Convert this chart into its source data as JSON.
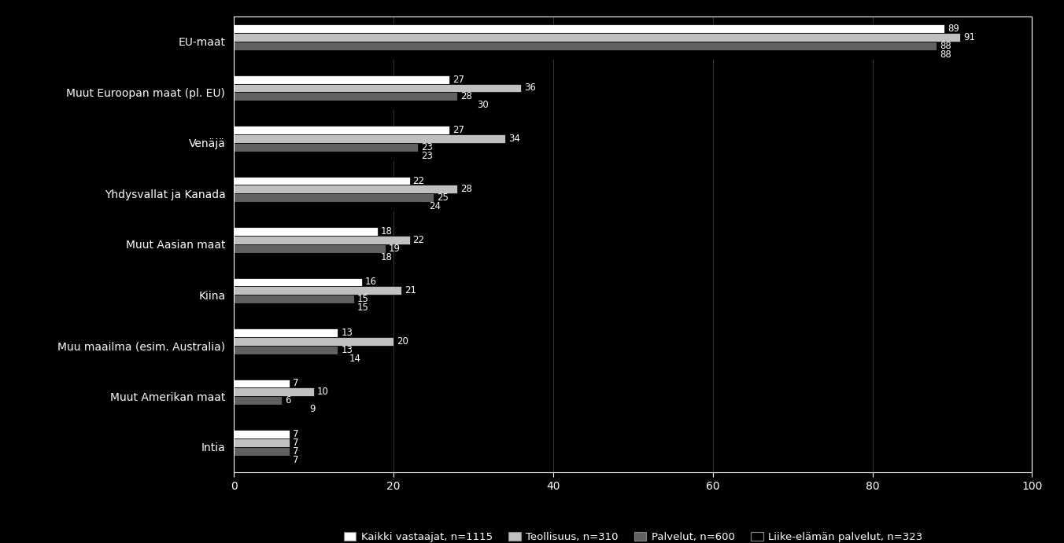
{
  "categories": [
    "EU-maat",
    "Muut Euroopan maat (pl. EU)",
    "Venäjä",
    "Yhdysvallat ja Kanada",
    "Muut Aasian maat",
    "Kiina",
    "Muu maailma (esim. Australia)",
    "Muut Amerikan maat",
    "Intia"
  ],
  "series_order": [
    "Kaikki vastaajat, n=1115",
    "Teollisuus, n=310",
    "Palvelut, n=600",
    "Liike-elämän palvelut, n=323"
  ],
  "series": {
    "Kaikki vastaajat, n=1115": [
      89,
      27,
      27,
      22,
      18,
      16,
      13,
      7,
      7
    ],
    "Teollisuus, n=310": [
      91,
      36,
      34,
      28,
      22,
      21,
      20,
      10,
      7
    ],
    "Palvelut, n=600": [
      88,
      28,
      23,
      25,
      19,
      15,
      13,
      6,
      7
    ],
    "Liike-elämän palvelut, n=323": [
      88,
      30,
      23,
      24,
      18,
      15,
      14,
      9,
      7
    ]
  },
  "colors": {
    "Kaikki vastaajat, n=1115": "#ffffff",
    "Teollisuus, n=310": "#c0c0c0",
    "Palvelut, n=600": "#606060",
    "Liike-elämän palvelut, n=323": "#000000"
  },
  "bar_height": 0.17,
  "bar_gap": 0.0,
  "xlim": [
    0,
    100
  ],
  "xticks": [
    0,
    20,
    40,
    60,
    80,
    100
  ],
  "background_color": "#000000",
  "plot_area_color": "#000000",
  "text_color": "#ffffff",
  "spine_color": "#ffffff",
  "grid_color": "#ffffff",
  "label_fontsize": 8.5,
  "ytick_fontsize": 10,
  "xtick_fontsize": 10,
  "legend_fontsize": 9.5
}
